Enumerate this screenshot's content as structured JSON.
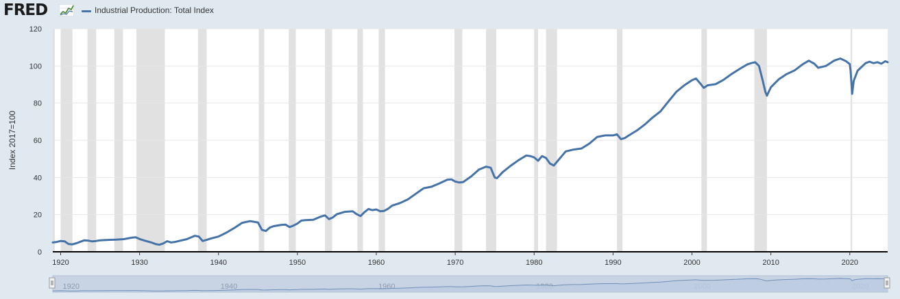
{
  "brand": {
    "name": "FRED",
    "logo_icon": "trend-graph-icon"
  },
  "colors": {
    "page_background": "#e1e9f0",
    "plot_background": "#ffffff",
    "series_line": "#4572a7",
    "recession_band": "#e1e1e1",
    "navigator_fill": "#bccbe0"
  },
  "chart_data": {
    "type": "line",
    "title": "",
    "ylabel": "Index 2017=100",
    "xlabel": "",
    "ylim": [
      0,
      120
    ],
    "xlim": [
      1919.0,
      2024.8
    ],
    "y_ticks": [
      0,
      20,
      40,
      60,
      80,
      100,
      120
    ],
    "x_ticks": [
      1920,
      1930,
      1940,
      1950,
      1960,
      1970,
      1980,
      1990,
      2000,
      2010,
      2020
    ],
    "grid": true,
    "legend_position": "top-left",
    "series": [
      {
        "name": "Industrial Production: Total Index",
        "x": [
          1919.0,
          1919.5,
          1920.0,
          1920.5,
          1921.0,
          1921.5,
          1922.0,
          1922.5,
          1923.0,
          1923.5,
          1924.0,
          1924.5,
          1925.0,
          1926.0,
          1927.0,
          1928.0,
          1929.0,
          1929.5,
          1930.0,
          1930.5,
          1931.0,
          1931.5,
          1932.0,
          1932.5,
          1933.0,
          1933.5,
          1934.0,
          1934.5,
          1935.0,
          1936.0,
          1937.0,
          1937.5,
          1938.0,
          1938.5,
          1939.0,
          1940.0,
          1941.0,
          1942.0,
          1943.0,
          1944.0,
          1945.0,
          1945.5,
          1946.0,
          1946.5,
          1947.0,
          1948.0,
          1948.5,
          1949.0,
          1949.5,
          1950.0,
          1950.5,
          1951.0,
          1952.0,
          1953.0,
          1953.5,
          1954.0,
          1954.5,
          1955.0,
          1956.0,
          1957.0,
          1957.5,
          1958.0,
          1958.5,
          1959.0,
          1959.5,
          1960.0,
          1960.5,
          1961.0,
          1961.5,
          1962.0,
          1963.0,
          1964.0,
          1965.0,
          1966.0,
          1967.0,
          1968.0,
          1969.0,
          1969.5,
          1970.0,
          1970.5,
          1971.0,
          1972.0,
          1973.0,
          1973.9,
          1974.5,
          1975.0,
          1975.3,
          1976.0,
          1977.0,
          1978.0,
          1979.0,
          1979.5,
          1980.0,
          1980.5,
          1981.0,
          1981.5,
          1982.0,
          1982.5,
          1983.0,
          1984.0,
          1985.0,
          1986.0,
          1987.0,
          1988.0,
          1989.0,
          1990.0,
          1990.5,
          1991.0,
          1991.5,
          1992.0,
          1993.0,
          1994.0,
          1995.0,
          1996.0,
          1997.0,
          1998.0,
          1999.0,
          2000.0,
          2000.5,
          2001.0,
          2001.5,
          2002.0,
          2003.0,
          2004.0,
          2005.0,
          2006.0,
          2007.0,
          2007.5,
          2008.0,
          2008.5,
          2009.0,
          2009.3,
          2009.5,
          2010.0,
          2011.0,
          2012.0,
          2013.0,
          2014.0,
          2014.8,
          2015.5,
          2016.0,
          2017.0,
          2018.0,
          2018.8,
          2019.5,
          2020.0,
          2020.1,
          2020.3,
          2020.5,
          2021.0,
          2022.0,
          2022.5,
          2023.0,
          2023.5,
          2024.0,
          2024.5,
          2024.8
        ],
        "values": [
          5.0,
          5.3,
          5.8,
          5.6,
          4.2,
          4.0,
          4.6,
          5.4,
          6.2,
          6.0,
          5.6,
          5.8,
          6.2,
          6.4,
          6.5,
          6.8,
          7.6,
          7.8,
          6.9,
          6.2,
          5.6,
          5.0,
          4.2,
          3.8,
          4.5,
          5.7,
          5.0,
          5.3,
          5.8,
          6.8,
          8.6,
          8.2,
          5.8,
          6.4,
          7.1,
          8.2,
          10.3,
          12.8,
          15.6,
          16.5,
          15.8,
          11.8,
          11.2,
          13.0,
          13.8,
          14.5,
          14.6,
          13.3,
          14.1,
          15.2,
          16.8,
          17.0,
          17.2,
          19.0,
          19.6,
          17.6,
          18.5,
          20.2,
          21.5,
          21.8,
          20.3,
          19.2,
          21.3,
          23.0,
          22.4,
          22.8,
          21.8,
          22.0,
          23.2,
          24.8,
          26.2,
          28.2,
          31.2,
          34.2,
          35.0,
          36.8,
          38.8,
          39.0,
          37.8,
          37.3,
          37.5,
          40.5,
          44.2,
          45.8,
          45.2,
          40.0,
          39.6,
          42.8,
          46.2,
          49.2,
          51.8,
          51.5,
          50.8,
          49.0,
          51.5,
          50.5,
          47.5,
          46.4,
          49.0,
          54.0,
          55.0,
          55.6,
          58.2,
          61.8,
          62.6,
          62.6,
          63.2,
          60.6,
          61.2,
          62.6,
          65.2,
          68.4,
          72.2,
          75.5,
          80.8,
          86.0,
          89.5,
          92.3,
          93.2,
          90.8,
          88.2,
          89.6,
          90.2,
          92.5,
          95.6,
          98.3,
          100.8,
          101.5,
          102.0,
          100.0,
          91.5,
          86.0,
          84.0,
          88.5,
          92.8,
          95.6,
          97.6,
          100.8,
          102.8,
          101.2,
          99.0,
          100.0,
          102.8,
          104.0,
          102.6,
          101.0,
          97.5,
          85.0,
          92.0,
          97.5,
          101.5,
          102.3,
          101.5,
          102.0,
          101.2,
          102.5,
          102.0
        ]
      }
    ],
    "recessions": [
      [
        1918.75,
        1919.25
      ],
      [
        1920.0,
        1921.5
      ],
      [
        1923.4,
        1924.5
      ],
      [
        1926.8,
        1927.9
      ],
      [
        1929.6,
        1933.2
      ],
      [
        1937.4,
        1938.5
      ],
      [
        1945.1,
        1945.8
      ],
      [
        1948.9,
        1949.8
      ],
      [
        1953.5,
        1954.4
      ],
      [
        1957.6,
        1958.3
      ],
      [
        1960.3,
        1961.1
      ],
      [
        1969.9,
        1970.9
      ],
      [
        1973.9,
        1975.2
      ],
      [
        1980.0,
        1980.5
      ],
      [
        1981.5,
        1982.9
      ],
      [
        1990.5,
        1991.2
      ],
      [
        2001.2,
        2001.9
      ],
      [
        2007.9,
        2009.5
      ],
      [
        2020.1,
        2020.3
      ]
    ],
    "navigator_labels": [
      1920,
      1940,
      1960,
      1980,
      2000,
      2020
    ]
  }
}
